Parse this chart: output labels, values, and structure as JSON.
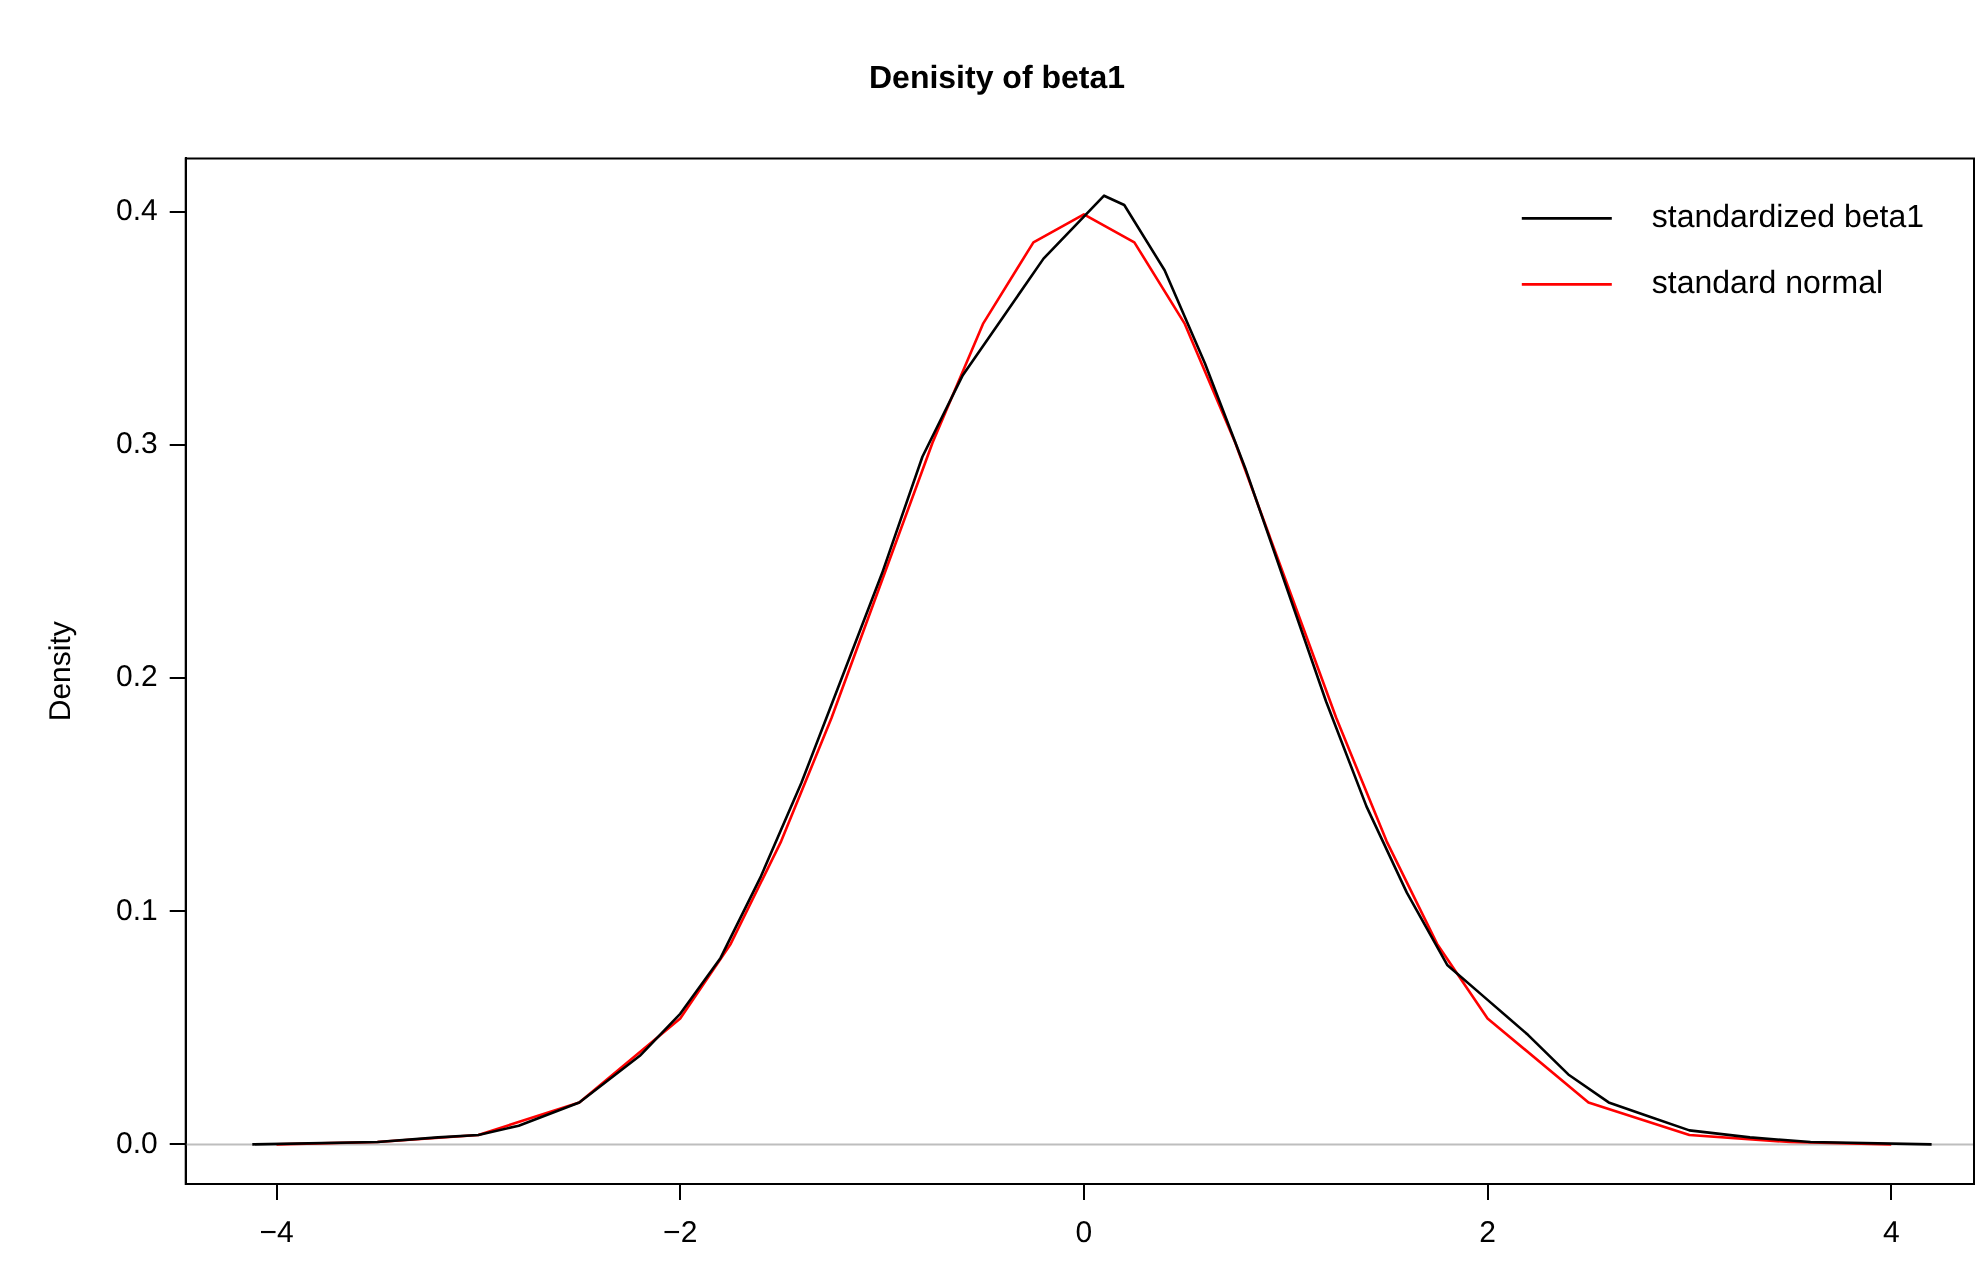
{
  "chart_data": {
    "type": "line",
    "title": "Denisity of beta1",
    "ylabel": "Density",
    "xlim": [
      -4.45,
      4.41
    ],
    "xticks": [
      {
        "value": -4,
        "label": "−4"
      },
      {
        "value": -2,
        "label": "−2"
      },
      0,
      2,
      4
    ],
    "ylim": [
      -0.017,
      0.423
    ],
    "yticks": [
      {
        "value": 0,
        "label": "0.0"
      },
      0.1,
      0.2,
      0.3,
      0.4
    ],
    "grid": false,
    "legend": "top right",
    "marker": "none",
    "line_style": "solid",
    "ref_lines": [
      {
        "axis": "y",
        "value": 0,
        "color": "#bebebe"
      }
    ],
    "series": [
      {
        "name": "standardized beta1",
        "color": "#000000",
        "x": [
          -4.12,
          -3.5,
          -3.2,
          -3.0,
          -2.8,
          -2.5,
          -2.2,
          -2.0,
          -1.8,
          -1.6,
          -1.4,
          -1.2,
          -1.0,
          -0.8,
          -0.6,
          -0.4,
          -0.2,
          0,
          0.1,
          0.2,
          0.4,
          0.6,
          0.8,
          1.0,
          1.2,
          1.4,
          1.6,
          1.8,
          2.0,
          2.2,
          2.4,
          2.6,
          2.8,
          3.0,
          3.3,
          3.6,
          4.2
        ],
        "values": [
          0,
          0.001,
          0.003,
          0.004,
          0.008,
          0.018,
          0.038,
          0.056,
          0.08,
          0.115,
          0.155,
          0.2,
          0.245,
          0.295,
          0.33,
          0.355,
          0.38,
          0.398,
          0.407,
          0.403,
          0.375,
          0.335,
          0.29,
          0.24,
          0.19,
          0.145,
          0.108,
          0.077,
          0.062,
          0.047,
          0.03,
          0.018,
          0.012,
          0.006,
          0.003,
          0.001,
          0
        ]
      },
      {
        "name": "standard normal",
        "color": "#ff0000",
        "x": [
          -4,
          -3.5,
          -3,
          -2.5,
          -2,
          -1.75,
          -1.5,
          -1.25,
          -1,
          -0.75,
          -0.5,
          -0.25,
          0,
          0.25,
          0.5,
          0.75,
          1,
          1.25,
          1.5,
          1.75,
          2,
          2.5,
          3,
          3.5,
          4
        ],
        "values": [
          0,
          0.001,
          0.004,
          0.018,
          0.054,
          0.086,
          0.13,
          0.183,
          0.242,
          0.301,
          0.352,
          0.387,
          0.399,
          0.387,
          0.352,
          0.301,
          0.242,
          0.183,
          0.13,
          0.086,
          0.054,
          0.018,
          0.004,
          0.001,
          0
        ]
      }
    ]
  }
}
